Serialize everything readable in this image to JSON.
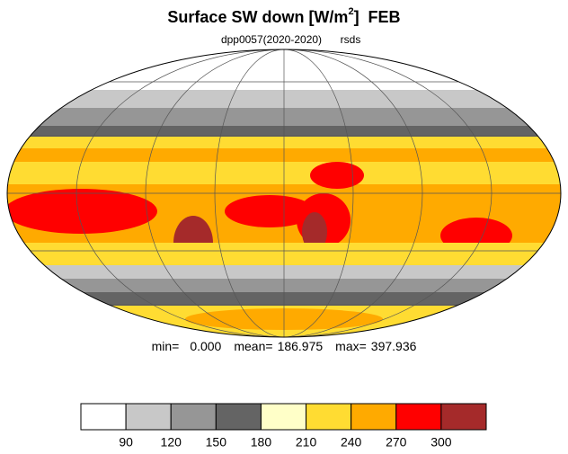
{
  "map": {
    "title": {
      "text": "Surface SW down [W/m",
      "superscript": "2",
      "suffix": "]  FEB"
    },
    "subtitle": {
      "left": "dpp0057(2020-2020)",
      "right": "rsds"
    },
    "stats": [
      {
        "label": "min=",
        "value": "0.000"
      },
      {
        "label": "mean=",
        "value": "186.975"
      },
      {
        "label": "max=",
        "value": "397.936"
      }
    ],
    "colorbar": {
      "colors": [
        "#ffffff",
        "#c8c8c8",
        "#969696",
        "#646464",
        "#ffffc8",
        "#ffdc32",
        "#ffaa00",
        "#ff0000",
        "#a52a2a"
      ],
      "levels": [
        90,
        120,
        150,
        180,
        210,
        240,
        270,
        300
      ]
    }
  }
}
